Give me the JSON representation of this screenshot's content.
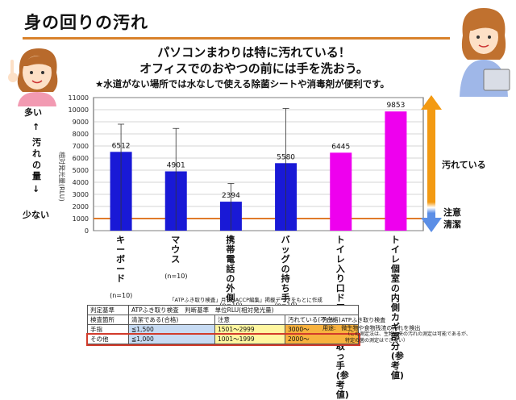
{
  "page": {
    "title": "身の回りの汚れ",
    "headline1": "パソコンまわりは特に汚れている！",
    "headline2": "オフィスでのおやつの前には手を洗おう。",
    "note": "★水道がない場所では水なしで使える除菌シートや消毒剤が便利です。",
    "side_left": {
      "top": "多い",
      "arrow_up": "↑",
      "middle": "汚れの量",
      "arrow_down": "↓",
      "bottom": "少ない"
    },
    "side_right": {
      "dirty": "汚れている",
      "caution": "注意",
      "clean": "清潔"
    },
    "source_caption": "「ATPふき取り検査」月刊HACCP編集」掲載データをもとに作成",
    "method_line": "方法:　ATPふき取り検査",
    "purpose_line": "用途:　微生物や食物残渣の汚れを検出",
    "purpose_note1": "（この測定法は、生物由来の汚れの測定は可能であるが、",
    "purpose_note2": "特定の菌の測定はできない）"
  },
  "table": {
    "header1": {
      "label": "判定基準",
      "value": "ATPふき取り検査　判断基準　単位RLU(相対発光量)"
    },
    "header2": {
      "label": "検査箇所",
      "clean": "清潔である(合格)",
      "caution": "注意",
      "dirty": "汚れている(不合格)"
    },
    "rows": [
      {
        "label": "手指",
        "clean": "≦1,500",
        "caution": "1501～2999",
        "dirty": "3000～"
      },
      {
        "label": "その他",
        "clean": "≦1,000",
        "caution": "1001～1999",
        "dirty": "2000～"
      }
    ]
  },
  "colors": {
    "blue_bar": "#1919d6",
    "pink_bar": "#ee00ee",
    "threshold": "#e07a2a",
    "arrow_top": "#f39a12",
    "arrow_bottom": "#5b8ee6",
    "rule": "#d9822b"
  },
  "chart_data": {
    "type": "bar",
    "ylabel": "相対発光量(RLU)",
    "ylim": [
      0,
      11000
    ],
    "yticks": [
      0,
      1000,
      2000,
      3000,
      4000,
      5000,
      6000,
      7000,
      8000,
      9000,
      10000,
      11000
    ],
    "threshold": 1000,
    "bars": [
      {
        "label": "キーボード",
        "n": "(n=10)",
        "value": 6512,
        "value_label": "6512",
        "err_high": 8800,
        "err_low": 0,
        "color": "#1919d6"
      },
      {
        "label": "マウス",
        "n": "(n=10)",
        "value": 4901,
        "value_label": "4901",
        "err_high": 8450,
        "err_low": 0,
        "color": "#1919d6"
      },
      {
        "label": "携帯電話の外側",
        "n": "(n=10)",
        "value": 2394,
        "value_label": "2394",
        "err_high": 3900,
        "err_low": 0,
        "color": "#1919d6"
      },
      {
        "label": "バッグの持ち手",
        "n": "(n=10)",
        "value": 5580,
        "value_label": "5580",
        "err_high": 10100,
        "err_low": 0,
        "color": "#1919d6"
      },
      {
        "label": "トイレ入り口ドア内側の取っ手(参考値)",
        "n": "",
        "value": 6445,
        "value_label": "6445",
        "err_high": null,
        "err_low": null,
        "color": "#ee00ee"
      },
      {
        "label": "トイレ個室の内側カギ部分(参考値)",
        "n": "",
        "value": 9853,
        "value_label": "9853",
        "err_high": null,
        "err_low": null,
        "color": "#ee00ee"
      }
    ]
  }
}
